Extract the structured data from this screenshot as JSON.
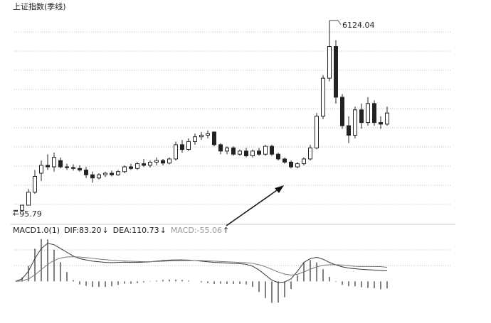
{
  "chart_data": [
    {
      "type": "candlestick",
      "title": "上证指数(季线)",
      "color": "#222",
      "ylim": [
        0,
        6500
      ],
      "open": [
        100,
        127,
        290,
        700,
        1300,
        1550,
        1500,
        1700,
        1500,
        1480,
        1450,
        1400,
        1250,
        1150,
        1250,
        1300,
        1250,
        1350,
        1500,
        1450,
        1600,
        1550,
        1650,
        1700,
        1620,
        1750,
        2200,
        2050,
        2300,
        2450,
        2500,
        2600,
        2200,
        2000,
        2100,
        1900,
        2000,
        1850,
        2000,
        1900,
        2150,
        1900,
        1750,
        1650,
        1500,
        1600,
        1750,
        2100,
        3100,
        4300,
        5300,
        3700,
        2800,
        2500,
        3300,
        2900,
        3500,
        2900,
        2850
      ],
      "high": [
        130,
        300,
        800,
        1400,
        1700,
        1900,
        1950,
        1800,
        1600,
        1580,
        1550,
        1500,
        1350,
        1300,
        1350,
        1380,
        1400,
        1550,
        1600,
        1650,
        1750,
        1700,
        1800,
        1750,
        1800,
        2300,
        2350,
        2400,
        2550,
        2600,
        2650,
        2620,
        2250,
        2150,
        2150,
        2050,
        2100,
        2050,
        2100,
        2200,
        2200,
        1950,
        1800,
        1700,
        1650,
        1800,
        2200,
        3200,
        4400,
        6124.04,
        5500,
        3800,
        3100,
        3400,
        3500,
        3700,
        3600,
        3100,
        3400
      ],
      "low": [
        95.79,
        110,
        280,
        650,
        1050,
        1400,
        1350,
        1450,
        1400,
        1380,
        1350,
        1150,
        1000,
        1100,
        1180,
        1200,
        1220,
        1300,
        1400,
        1400,
        1500,
        1480,
        1550,
        1550,
        1580,
        1700,
        1950,
        2000,
        2200,
        2350,
        2400,
        2150,
        1900,
        1900,
        1850,
        1850,
        1800,
        1800,
        1850,
        1850,
        1850,
        1700,
        1600,
        1450,
        1450,
        1550,
        1700,
        2050,
        3000,
        4200,
        3500,
        2700,
        2250,
        2400,
        2700,
        2800,
        2800,
        2700,
        2800
      ],
      "close": [
        127,
        290,
        700,
        1200,
        1550,
        1500,
        1800,
        1500,
        1480,
        1450,
        1400,
        1250,
        1150,
        1250,
        1300,
        1250,
        1350,
        1500,
        1450,
        1600,
        1550,
        1650,
        1700,
        1620,
        1750,
        2200,
        2050,
        2300,
        2450,
        2500,
        2550,
        2200,
        2000,
        2100,
        1900,
        2000,
        1850,
        2000,
        1900,
        2150,
        1900,
        1750,
        1650,
        1500,
        1600,
        1750,
        2100,
        3100,
        4300,
        5300,
        3700,
        2800,
        2500,
        3300,
        2900,
        3500,
        2900,
        2850,
        3200
      ],
      "annotations": [
        {
          "text": "6124.04",
          "index": 49
        },
        {
          "text": "←95.79",
          "index": 0
        }
      ]
    },
    {
      "type": "macd",
      "title": "MACD1.0(1)",
      "ylim": [
        -200,
        350
      ],
      "series": [
        {
          "name": "DIF:83.20",
          "trend": "↓",
          "color": "#333",
          "values": [
            0,
            20,
            80,
            180,
            260,
            300,
            290,
            260,
            230,
            200,
            180,
            170,
            160,
            155,
            150,
            148,
            150,
            152,
            150,
            150,
            152,
            155,
            160,
            165,
            168,
            170,
            170,
            168,
            165,
            160,
            155,
            150,
            148,
            145,
            142,
            140,
            135,
            120,
            90,
            50,
            10,
            -10,
            -5,
            20,
            80,
            150,
            180,
            190,
            175,
            150,
            130,
            115,
            105,
            100,
            95,
            92,
            90,
            86,
            83.2
          ]
        },
        {
          "name": "DEA:110.73",
          "trend": "↓",
          "color": "#777",
          "values": [
            0,
            4,
            19,
            51,
            93,
            134,
            165,
            184,
            193,
            195,
            192,
            188,
            182,
            177,
            172,
            167,
            164,
            161,
            159,
            157,
            156,
            156,
            157,
            159,
            161,
            163,
            164,
            165,
            165,
            164,
            162,
            160,
            157,
            155,
            152,
            150,
            147,
            142,
            132,
            116,
            95,
            74,
            58,
            50,
            56,
            75,
            96,
            115,
            127,
            132,
            132,
            129,
            124,
            119,
            118,
            118,
            117,
            117,
            110.73
          ]
        },
        {
          "name": "MACD:-55.06",
          "trend": "↑",
          "color": "#555",
          "values": [
            0,
            32,
            122,
            258,
            334,
            332,
            250,
            152,
            74,
            10,
            -24,
            -36,
            -44,
            -44,
            -44,
            -38,
            -28,
            -18,
            -18,
            -14,
            -8,
            -2,
            6,
            12,
            14,
            14,
            12,
            6,
            0,
            -8,
            -14,
            -20,
            -18,
            -20,
            -20,
            -20,
            -24,
            -44,
            -84,
            -132,
            -170,
            -168,
            -126,
            -60,
            48,
            150,
            168,
            150,
            96,
            36,
            -4,
            -28,
            -38,
            -38,
            -46,
            -52,
            -54,
            -62,
            -55.06
          ]
        }
      ]
    }
  ]
}
